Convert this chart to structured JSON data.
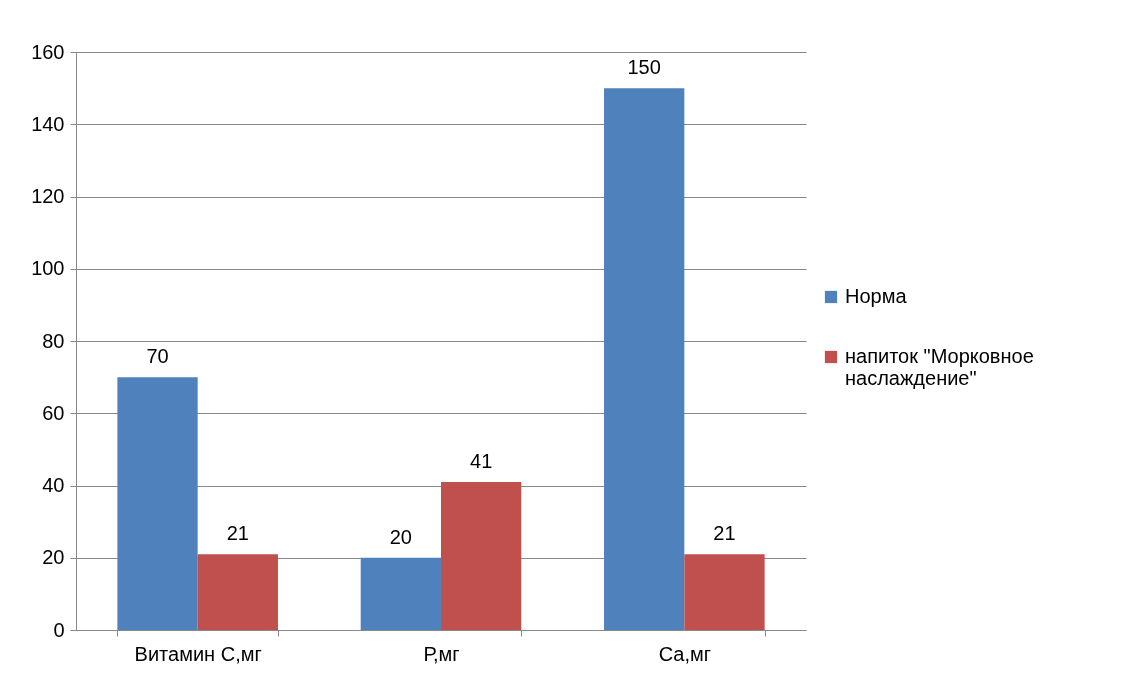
{
  "chart_data": {
    "type": "bar",
    "categories": [
      "Витамин С,мг",
      "Р,мг",
      "Са,мг"
    ],
    "series": [
      {
        "name": "Норма",
        "color": "#4f81bd",
        "values": [
          70,
          20,
          150
        ]
      },
      {
        "name": "напиток \"Морковное наслаждение\"",
        "color": "#c0504d",
        "values": [
          21,
          41,
          21
        ]
      }
    ],
    "ylim": [
      0,
      160
    ],
    "yticks": [
      0,
      20,
      40,
      60,
      80,
      100,
      120,
      140,
      160
    ],
    "grid": "y",
    "legend": "right",
    "data_labels": true
  }
}
